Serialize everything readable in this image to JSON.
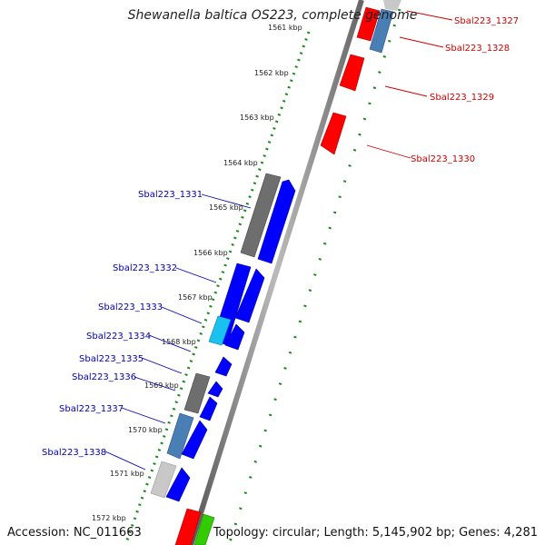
{
  "title": "Shewanella baltica OS223, complete genome",
  "footer": {
    "accession": "Accession: NC_011663",
    "topology": "Topology: circular; Length: 5,145,902 bp; Genes: 4,281"
  },
  "colors": {
    "forward": "#0000ff",
    "reverse": "#ff0000",
    "steel": "#4a7fb5",
    "cyan": "#19c0f0",
    "gray": "#6e6e6e",
    "lightgray": "#c8c8c8",
    "green": "#33cc00",
    "backbone": "#8c8c8c",
    "gc": "#1a8a1a"
  },
  "ticks": [
    "1561 kbp",
    "1562 kbp",
    "1563 kbp",
    "1564 kbp",
    "1565 kbp",
    "1566 kbp",
    "1567 kbp",
    "1568 kbp",
    "1569 kbp",
    "1570 kbp",
    "1571 kbp",
    "1572 kbp"
  ],
  "reverse_labels": [
    "Sbal223_1327",
    "Sbal223_1328",
    "Sbal223_1329",
    "Sbal223_1330"
  ],
  "forward_labels": [
    "Sbal223_1331",
    "Sbal223_1332",
    "Sbal223_1333",
    "Sbal223_1334",
    "Sbal223_1335",
    "Sbal223_1336",
    "Sbal223_1337",
    "Sbal223_1338"
  ]
}
